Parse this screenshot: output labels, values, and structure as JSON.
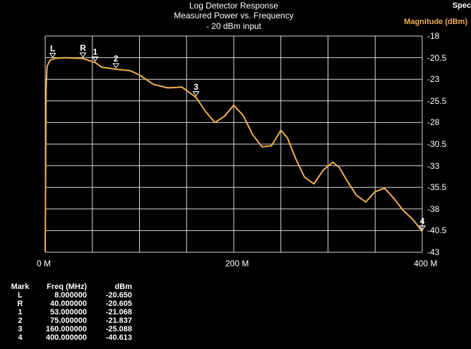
{
  "window": {
    "corner_label": "Spec"
  },
  "chart_data": {
    "type": "line",
    "title": [
      "Log Detector Response",
      "Measured Power vs. Frequency",
      "- 20 dBm input"
    ],
    "ylabel": "Magnitude (dBm)",
    "xlabel": "",
    "xlim": [
      0,
      400
    ],
    "ylim": [
      -43,
      -18
    ],
    "x_ticks": [
      {
        "value": 0,
        "label": "0 M"
      },
      {
        "value": 200,
        "label": "200 M"
      },
      {
        "value": 400,
        "label": "400 M"
      }
    ],
    "y_ticks": [
      -18,
      -20.5,
      -23,
      -25.5,
      -28,
      -30.5,
      -33,
      -35.5,
      -38,
      -40.5,
      -43
    ],
    "grid": true,
    "line_color": "#f0b050",
    "series": [
      {
        "x": [
          0,
          1,
          2,
          5,
          10,
          20,
          30,
          40,
          53,
          60,
          75,
          90,
          100,
          115,
          130,
          145,
          160,
          170,
          180,
          190,
          200,
          210,
          220,
          230,
          240,
          250,
          257,
          265,
          275,
          285,
          295,
          305,
          312,
          320,
          330,
          340,
          350,
          360,
          370,
          380,
          390,
          400
        ],
        "y": [
          -43,
          -24,
          -21.5,
          -20.8,
          -20.6,
          -20.5,
          -20.55,
          -20.6,
          -21.07,
          -21.6,
          -21.84,
          -22.0,
          -22.5,
          -23.6,
          -24.0,
          -23.9,
          -25.09,
          -26.7,
          -28.0,
          -27.3,
          -26.0,
          -27.2,
          -29.4,
          -30.8,
          -30.7,
          -28.9,
          -29.8,
          -32.0,
          -34.3,
          -35.1,
          -33.5,
          -32.6,
          -33.2,
          -34.7,
          -36.4,
          -37.2,
          -36.0,
          -35.6,
          -36.8,
          -38.2,
          -39.2,
          -40.61
        ]
      }
    ],
    "markers": [
      {
        "label": "L",
        "x": 8,
        "y": -20.65
      },
      {
        "label": "R",
        "x": 40,
        "y": -20.605
      },
      {
        "label": "1",
        "x": 53,
        "y": -21.068
      },
      {
        "label": "2",
        "x": 75,
        "y": -21.837
      },
      {
        "label": "3",
        "x": 160,
        "y": -25.088
      },
      {
        "label": "4",
        "x": 400,
        "y": -40.613
      }
    ]
  },
  "marker_table": {
    "headers": [
      "Mark",
      "Freq (MHz)",
      "dBm"
    ],
    "rows": [
      [
        "L",
        "8.000000",
        "-20.650"
      ],
      [
        "R",
        "40.000000",
        "-20.605"
      ],
      [
        "1",
        "53.000000",
        "-21.068"
      ],
      [
        "2",
        "75.000000",
        "-21.837"
      ],
      [
        "3",
        "160.000000",
        "-25.088"
      ],
      [
        "4",
        "400.000000",
        "-40.613"
      ]
    ]
  }
}
